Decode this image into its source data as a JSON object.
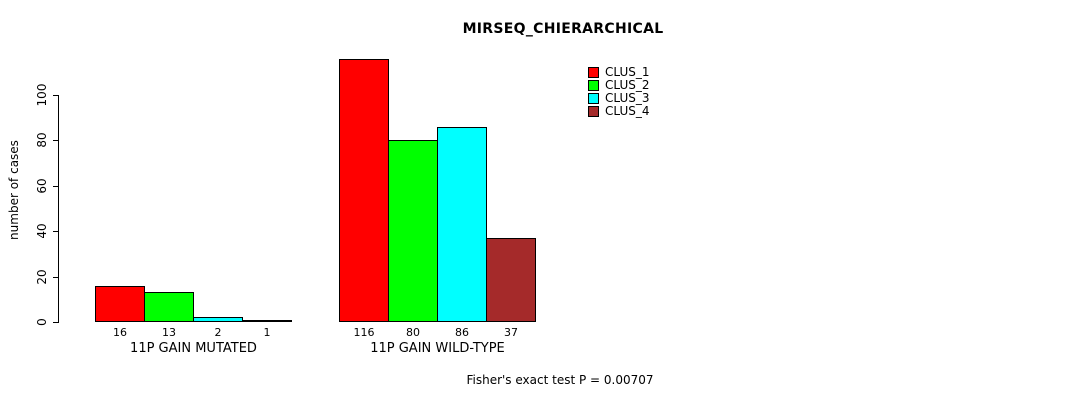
{
  "chart_data": {
    "type": "bar",
    "title": "MIRSEQ_CHIERARCHICAL",
    "ylabel": "number of cases",
    "xlabel": "",
    "categories": [
      "11P GAIN MUTATED",
      "11P GAIN WILD-TYPE"
    ],
    "series": [
      {
        "name": "CLUS_1",
        "color": "#FF0000",
        "values": [
          16,
          116
        ]
      },
      {
        "name": "CLUS_2",
        "color": "#00FF00",
        "values": [
          13,
          80
        ]
      },
      {
        "name": "CLUS_3",
        "color": "#00FFFF",
        "values": [
          2,
          86
        ]
      },
      {
        "name": "CLUS_4",
        "color": "#A52A2A",
        "values": [
          1,
          37
        ]
      }
    ],
    "bar_value_labels": [
      [
        "16",
        "13",
        "2",
        "1"
      ],
      [
        "116",
        "80",
        "86",
        "37"
      ]
    ],
    "yticks": [
      "0",
      "20",
      "40",
      "60",
      "80",
      "100"
    ],
    "ylim": [
      0,
      116
    ],
    "grid": false,
    "legend_position": "top-right",
    "annotation": "Fisher's exact test P = 0.00707"
  },
  "colors": {
    "background": "#FFFFFF",
    "axis": "#000000",
    "text": "#000000"
  }
}
